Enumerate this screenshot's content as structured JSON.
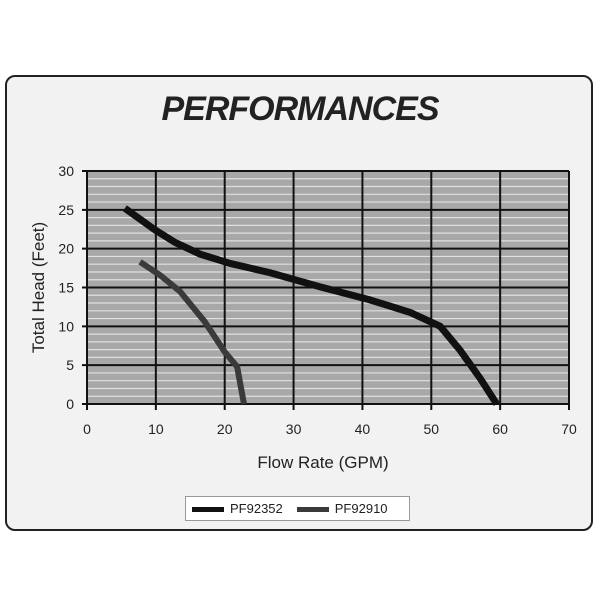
{
  "chart_data": {
    "type": "line",
    "title": "PERFORMANCES",
    "xlabel": "Flow Rate (GPM)",
    "ylabel": "Total Head (Feet)",
    "xlim": [
      0,
      70
    ],
    "ylim": [
      0,
      30
    ],
    "xticks": [
      0,
      10,
      20,
      30,
      40,
      50,
      60,
      70
    ],
    "yticks": [
      0,
      5,
      10,
      15,
      20,
      25,
      30
    ],
    "grid": true,
    "legend": "bottom",
    "series": [
      {
        "name": "PF92352",
        "color": "#111111",
        "x": [
          5.5,
          9.9,
          12.8,
          16.4,
          20.8,
          26.6,
          33.8,
          41.1,
          46.9,
          51.3,
          54.2,
          57.1,
          59.5
        ],
        "y": [
          25.2,
          22.4,
          20.8,
          19.3,
          18.1,
          16.9,
          15.1,
          13.4,
          11.8,
          10.0,
          6.9,
          3.3,
          0
        ]
      },
      {
        "name": "PF92910",
        "color": "#3a3a3a",
        "x": [
          7.7,
          10.6,
          13.5,
          17.1,
          20.0,
          21.8,
          22.8
        ],
        "y": [
          18.3,
          16.6,
          14.5,
          10.6,
          6.7,
          4.8,
          0
        ]
      }
    ]
  }
}
